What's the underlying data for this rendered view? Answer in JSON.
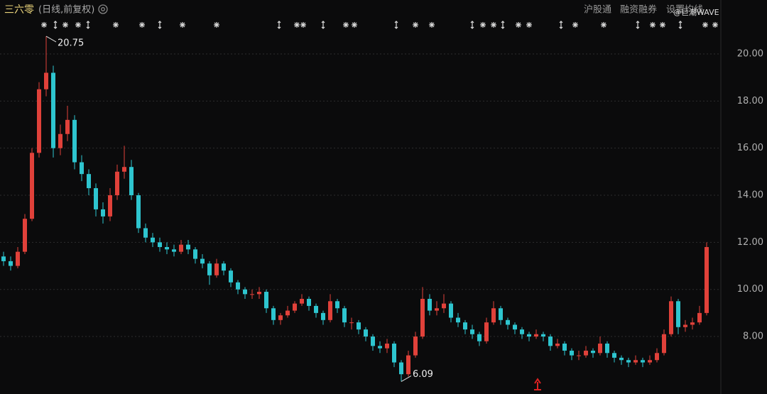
{
  "chart_data": {
    "type": "candlestick",
    "title": "三六零",
    "subtitle": "(日线,前复权)",
    "toolbar": [
      "沪股通",
      "融资融券",
      "设置均线"
    ],
    "watermark": "@巨潮WAVE",
    "up_color": "#e0413a",
    "down_color": "#2ec5cf",
    "grid": true,
    "ylim": [
      5.56,
      22.29
    ],
    "yticks": [
      {
        "value": 8,
        "label": "8.00"
      },
      {
        "value": 10,
        "label": "10.00"
      },
      {
        "value": 12,
        "label": "12.00"
      },
      {
        "value": 14,
        "label": "14.00"
      },
      {
        "value": 16,
        "label": "16.00"
      },
      {
        "value": 18,
        "label": "18.00"
      },
      {
        "value": 20,
        "label": "20.00"
      }
    ],
    "open": [
      11.4,
      11.2,
      11.0,
      11.6,
      13.0,
      15.8,
      18.5,
      19.2,
      16.0,
      16.6,
      17.2,
      15.4,
      14.9,
      14.3,
      13.4,
      13.1,
      14.0,
      15.0,
      15.2,
      14.0,
      12.6,
      12.2,
      12.0,
      11.8,
      11.7,
      11.6,
      11.9,
      11.7,
      11.3,
      11.1,
      10.6,
      11.1,
      10.8,
      10.3,
      10.0,
      9.8,
      9.8,
      9.9,
      9.2,
      8.7,
      8.9,
      9.1,
      9.4,
      9.6,
      9.3,
      9.0,
      8.7,
      9.5,
      9.2,
      8.6,
      8.6,
      8.3,
      8.0,
      7.6,
      7.5,
      7.7,
      6.9,
      6.4,
      7.2,
      8.0,
      9.6,
      9.1,
      9.2,
      9.4,
      8.8,
      8.6,
      8.3,
      8.1,
      7.8,
      8.6,
      9.2,
      8.7,
      8.5,
      8.3,
      8.1,
      8.0,
      8.1,
      8.0,
      7.6,
      7.7,
      7.4,
      7.2,
      7.2,
      7.4,
      7.3,
      7.7,
      7.3,
      7.1,
      7.0,
      6.9,
      7.0,
      6.9,
      7.0,
      7.3,
      8.1,
      9.5,
      8.4,
      8.5,
      8.6,
      9.0
    ],
    "high": [
      11.6,
      11.4,
      11.8,
      13.2,
      16.0,
      18.8,
      20.75,
      19.5,
      17.0,
      17.8,
      17.4,
      15.7,
      15.1,
      14.5,
      13.7,
      14.3,
      15.3,
      16.1,
      15.5,
      14.1,
      12.8,
      12.4,
      12.2,
      12.0,
      11.9,
      12.1,
      12.1,
      11.8,
      11.5,
      11.2,
      11.3,
      11.2,
      10.9,
      10.4,
      10.1,
      10.0,
      10.1,
      10.0,
      9.3,
      9.0,
      9.3,
      9.5,
      9.8,
      9.7,
      9.4,
      9.1,
      9.8,
      9.6,
      9.3,
      8.8,
      8.7,
      8.4,
      8.1,
      7.8,
      7.9,
      7.8,
      7.0,
      7.4,
      8.2,
      10.1,
      9.8,
      9.5,
      9.8,
      9.5,
      9.0,
      8.7,
      8.5,
      8.2,
      8.8,
      9.5,
      9.3,
      8.8,
      8.6,
      8.4,
      8.2,
      8.3,
      8.2,
      8.1,
      7.9,
      7.8,
      7.5,
      7.4,
      7.6,
      7.5,
      8.0,
      7.8,
      7.4,
      7.2,
      7.1,
      7.2,
      7.1,
      7.2,
      7.5,
      8.3,
      9.7,
      9.6,
      8.7,
      8.8,
      9.3,
      12.0
    ],
    "low": [
      11.0,
      10.8,
      10.9,
      11.5,
      12.9,
      15.6,
      18.2,
      15.6,
      15.7,
      16.3,
      15.1,
      14.6,
      14.0,
      13.1,
      12.8,
      12.9,
      13.8,
      14.7,
      13.8,
      12.4,
      12.0,
      11.8,
      11.6,
      11.5,
      11.4,
      11.5,
      11.5,
      11.1,
      10.9,
      10.2,
      10.5,
      10.6,
      10.1,
      9.8,
      9.6,
      9.6,
      9.6,
      9.0,
      8.5,
      8.5,
      8.8,
      9.0,
      9.3,
      9.1,
      8.8,
      8.5,
      8.6,
      9.0,
      8.4,
      8.3,
      8.1,
      7.8,
      7.4,
      7.3,
      7.3,
      6.7,
      6.09,
      6.3,
      7.1,
      7.9,
      8.9,
      8.9,
      9.0,
      8.6,
      8.4,
      8.1,
      7.9,
      7.6,
      7.7,
      8.5,
      8.5,
      8.3,
      8.1,
      7.9,
      7.8,
      7.9,
      7.8,
      7.4,
      7.5,
      7.2,
      7.0,
      7.0,
      7.1,
      7.1,
      7.2,
      7.1,
      6.9,
      6.8,
      6.7,
      6.8,
      6.7,
      6.8,
      6.9,
      7.2,
      8.0,
      8.1,
      8.2,
      8.3,
      8.5,
      8.9
    ],
    "close": [
      11.2,
      11.0,
      11.6,
      13.0,
      15.8,
      18.5,
      19.2,
      16.0,
      16.6,
      17.2,
      15.4,
      14.9,
      14.3,
      13.4,
      13.1,
      14.0,
      15.0,
      15.2,
      14.0,
      12.6,
      12.2,
      12.0,
      11.8,
      11.7,
      11.6,
      11.9,
      11.7,
      11.3,
      11.1,
      10.6,
      11.1,
      10.8,
      10.3,
      10.0,
      9.8,
      9.8,
      9.9,
      9.2,
      8.7,
      8.9,
      9.1,
      9.4,
      9.6,
      9.3,
      9.0,
      8.7,
      9.5,
      9.2,
      8.6,
      8.6,
      8.3,
      8.0,
      7.6,
      7.5,
      7.7,
      6.9,
      6.4,
      7.2,
      8.0,
      9.6,
      9.1,
      9.2,
      9.4,
      8.8,
      8.6,
      8.3,
      8.1,
      7.8,
      8.6,
      9.2,
      8.7,
      8.5,
      8.3,
      8.1,
      8.0,
      8.1,
      8.0,
      7.6,
      7.7,
      7.4,
      7.2,
      7.2,
      7.4,
      7.3,
      7.7,
      7.3,
      7.1,
      7.0,
      6.9,
      7.0,
      6.9,
      7.0,
      7.3,
      8.1,
      9.5,
      8.4,
      8.5,
      8.6,
      9.0,
      11.8
    ]
  }
}
